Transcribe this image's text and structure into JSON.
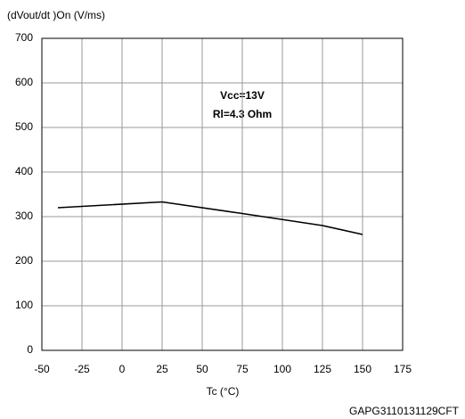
{
  "chart_data": {
    "type": "line",
    "y_label": "(dVout/dt )On (V/ms)",
    "x_label": "Tc (°C)",
    "annotations": [
      "Vcc=13V",
      "Rl=4.3 Ohm"
    ],
    "footer": "GAPG3110131129CFT",
    "series": [
      {
        "color": "#000000",
        "x": [
          -40,
          25,
          75,
          125,
          150
        ],
        "values": [
          320,
          333,
          307,
          280,
          260
        ]
      }
    ],
    "xlim": [
      -50,
      175
    ],
    "xticks": [
      -50,
      -25,
      0,
      25,
      50,
      75,
      100,
      125,
      150,
      175
    ],
    "ylim": [
      0,
      700
    ],
    "yticks": [
      0,
      100,
      200,
      300,
      400,
      500,
      600,
      700
    ],
    "grid": true
  }
}
